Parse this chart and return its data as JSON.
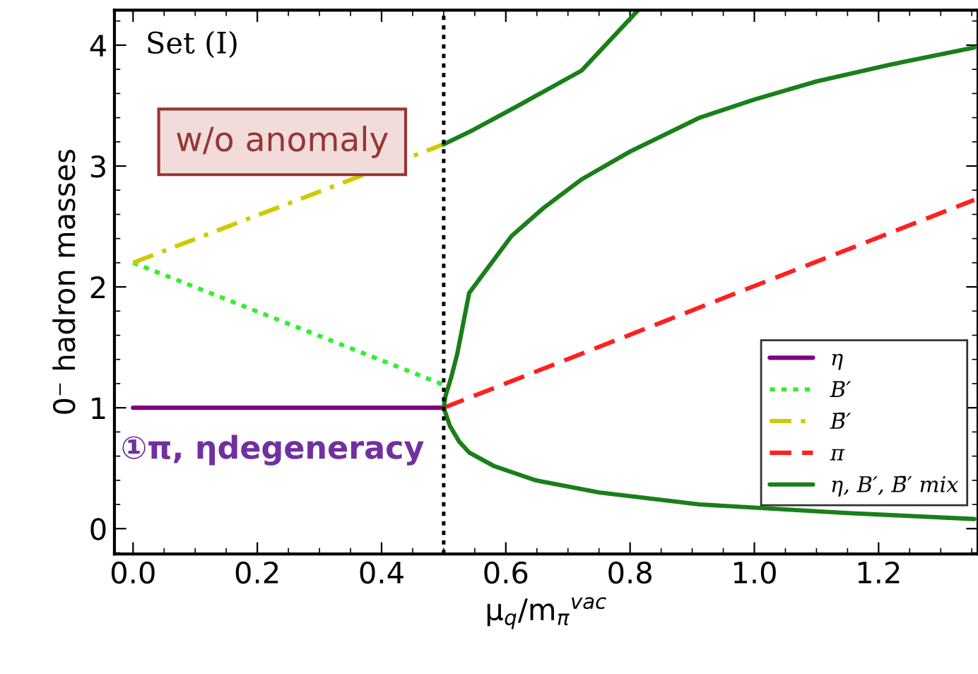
{
  "chart_data": {
    "type": "line",
    "ylabel": "0⁻ hadron masses",
    "xlabel": "μ$_{q}$/m$_{π}$$^{vac}$",
    "xlim": [
      -0.03,
      1.36
    ],
    "ylim": [
      -0.21,
      4.29
    ],
    "xticks": [
      {
        "value": 0,
        "label": "0.0"
      },
      0.2,
      0.4,
      0.6,
      0.8,
      {
        "value": 1,
        "label": "1.0"
      },
      1.2
    ],
    "yticks": [
      0,
      1,
      2,
      3,
      4
    ],
    "grid": false,
    "legend": "bottom right",
    "series": [
      {
        "name": "η",
        "color": "#800080",
        "line_style": "solid",
        "x": [
          0,
          0.5
        ],
        "values": [
          1,
          1
        ]
      },
      {
        "name": "B′",
        "color": "#33ee33",
        "line_style": "dotted",
        "x": [
          0,
          0.5
        ],
        "values": [
          2.2,
          1.19
        ]
      },
      {
        "name": "B̄′",
        "color": "#cccc00",
        "line_style": "dashdot",
        "x": [
          0,
          0.5
        ],
        "values": [
          2.2,
          3.18
        ]
      },
      {
        "name": "π",
        "color": "#ff2020",
        "line_style": "dashed",
        "x": [
          0.5,
          0.897,
          1.354
        ],
        "values": [
          1,
          1.8,
          2.72
        ]
      },
      {
        "name": "η, B′, B̄′ mix",
        "color": "#1a7f1a",
        "line_style": "solid",
        "x": [
          0.5,
          0.503,
          0.512,
          0.522,
          0.541,
          0.57,
          0.609,
          0.66,
          0.722,
          0.8,
          0.912,
          1.0,
          1.1,
          1.22,
          1.354
        ],
        "values": [
          1,
          1.1,
          1.25,
          1.45,
          1.95,
          2.15,
          2.42,
          2.65,
          2.89,
          3.12,
          3.4,
          3.55,
          3.7,
          3.84,
          3.98
        ]
      },
      {
        "color": "#1a7f1a",
        "line_style": "solid",
        "x": [
          0.5,
          0.51,
          0.525,
          0.541,
          0.58,
          0.648,
          0.75,
          0.912,
          1.146,
          1.354
        ],
        "values": [
          1,
          0.85,
          0.72,
          0.63,
          0.52,
          0.4,
          0.3,
          0.2,
          0.13,
          0.08
        ]
      },
      {
        "color": "#1a7f1a",
        "line_style": "solid",
        "x": [
          0.5,
          0.548,
          0.62,
          0.722,
          0.813
        ],
        "values": [
          3.18,
          3.3,
          3.5,
          3.79,
          4.29
        ]
      }
    ],
    "ref_lines": [
      {
        "axis": "x",
        "value": 0.5,
        "color": "#000000",
        "line_style": "dotted"
      }
    ],
    "annotations": [
      "Set (I)",
      "w/o anomaly",
      "①π, ηdegeneracy"
    ]
  }
}
